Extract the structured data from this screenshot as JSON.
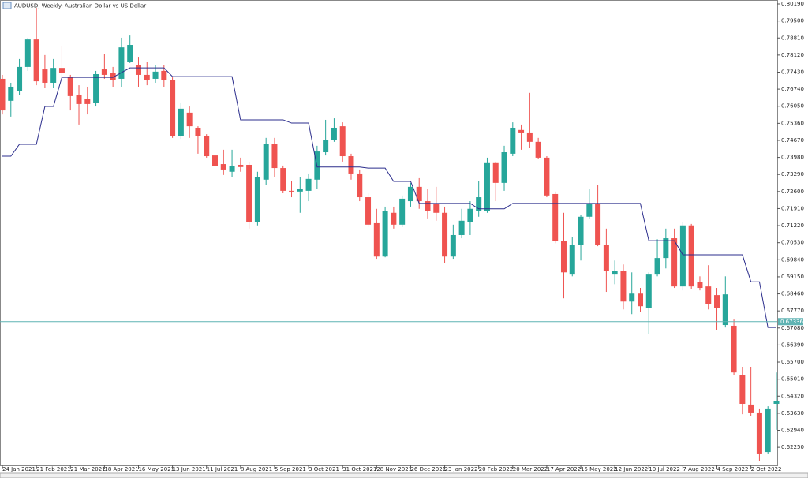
{
  "chart_data": {
    "type": "candlestick",
    "title": "AUDUSD, Weekly:  Australian Dollar vs US Dollar",
    "up_color": "#26a69a",
    "down_color": "#ef5350",
    "ylim": [
      0.6152,
      0.8035
    ],
    "yticks": [
      {
        "value": 0.8019,
        "label": "0.80190"
      },
      {
        "value": 0.795,
        "label": "0.79500"
      },
      {
        "value": 0.7881,
        "label": "0.78810"
      },
      {
        "value": 0.7812,
        "label": "0.78120"
      },
      {
        "value": 0.7743,
        "label": "0.77430"
      },
      {
        "value": 0.7674,
        "label": "0.76740"
      },
      {
        "value": 0.7605,
        "label": "0.76050"
      },
      {
        "value": 0.7536,
        "label": "0.75360"
      },
      {
        "value": 0.7467,
        "label": "0.74670"
      },
      {
        "value": 0.7398,
        "label": "0.73980"
      },
      {
        "value": 0.7329,
        "label": "0.73290"
      },
      {
        "value": 0.726,
        "label": "0.72600"
      },
      {
        "value": 0.7191,
        "label": "0.71910"
      },
      {
        "value": 0.7122,
        "label": "0.71220"
      },
      {
        "value": 0.7053,
        "label": "0.70530"
      },
      {
        "value": 0.6984,
        "label": "0.69840"
      },
      {
        "value": 0.6915,
        "label": "0.69150"
      },
      {
        "value": 0.6846,
        "label": "0.68460"
      },
      {
        "value": 0.6777,
        "label": "0.67770"
      },
      {
        "value": 0.6708,
        "label": "0.67080"
      },
      {
        "value": 0.6639,
        "label": "0.66390"
      },
      {
        "value": 0.657,
        "label": "0.65700"
      },
      {
        "value": 0.6501,
        "label": "0.65010"
      },
      {
        "value": 0.6432,
        "label": "0.64320"
      },
      {
        "value": 0.6363,
        "label": "0.63630"
      },
      {
        "value": 0.6294,
        "label": "0.62940"
      },
      {
        "value": 0.6225,
        "label": "0.62250"
      }
    ],
    "price_line": 0.67336,
    "price_line_color": "#5fb3b3",
    "categories": [
      "24 Jan 2021",
      null,
      null,
      null,
      "21 Feb 2021",
      null,
      null,
      null,
      "21 Mar 2021",
      null,
      null,
      null,
      "18 Apr 2021",
      null,
      null,
      null,
      "16 May 2021",
      null,
      null,
      null,
      "13 Jun 2021",
      null,
      null,
      null,
      "11 Jul 2021",
      null,
      null,
      null,
      "8 Aug 2021",
      null,
      null,
      null,
      "5 Sep 2021",
      null,
      null,
      null,
      "3 Oct 2021",
      null,
      null,
      null,
      "31 Oct 2021",
      null,
      null,
      null,
      "28 Nov 2021",
      null,
      null,
      null,
      "26 Dec 2021",
      null,
      null,
      null,
      "23 Jan 2022",
      null,
      null,
      null,
      "20 Feb 2022",
      null,
      null,
      null,
      "20 Mar 2022",
      null,
      null,
      null,
      "17 Apr 2022",
      null,
      null,
      null,
      "15 May 2022",
      null,
      null,
      null,
      "12 Jun 2022",
      null,
      null,
      null,
      "10 Jul 2022",
      null,
      null,
      null,
      "7 Aug 2022",
      null,
      null,
      null,
      "4 Sep 2022",
      null,
      null,
      null,
      "2 Oct 2022",
      null,
      null,
      null
    ],
    "open": [
      0.7716,
      0.7627,
      0.7668,
      0.7764,
      0.7875,
      0.7754,
      0.77,
      0.776,
      0.7725,
      0.7652,
      0.7636,
      0.762,
      0.7754,
      0.7741,
      0.7716,
      0.7786,
      0.7773,
      0.7732,
      0.7716,
      0.7748,
      0.771,
      0.7483,
      0.7579,
      0.7518,
      0.7486,
      0.7406,
      0.7371,
      0.734,
      0.7368,
      0.7368,
      0.7135,
      0.7308,
      0.7451,
      0.7355,
      0.7263,
      0.726,
      0.7263,
      0.7308,
      0.7419,
      0.747,
      0.7524,
      0.7403,
      0.7333,
      0.7237,
      0.7132,
      0.6997,
      0.7174,
      0.7126,
      0.7221,
      0.7279,
      0.7221,
      0.7212,
      0.7174,
      0.6997,
      0.7084,
      0.7135,
      0.718,
      0.718,
      0.7375,
      0.7295,
      0.7413,
      0.7509,
      0.7499,
      0.7461,
      0.7397,
      0.725,
      0.7061,
      0.6924,
      0.7045,
      0.7158,
      0.7212,
      0.7045,
      0.6924,
      0.694,
      0.6815,
      0.6847,
      0.679,
      0.6924,
      0.6991,
      0.7071,
      0.6876,
      0.7123,
      0.6895,
      0.6876,
      0.6841,
      0.672,
      0.6717,
      0.6516,
      0.6398,
      0.6366,
      0.6206,
      0.6401
    ],
    "high": [
      0.7732,
      0.77,
      0.7796,
      0.7882,
      0.8003,
      0.7812,
      0.7796,
      0.785,
      0.7732,
      0.769,
      0.7684,
      0.7748,
      0.7818,
      0.7764,
      0.7882,
      0.7891,
      0.7805,
      0.7786,
      0.7773,
      0.7773,
      0.7722,
      0.762,
      0.7604,
      0.7524,
      0.7492,
      0.7429,
      0.7429,
      0.7429,
      0.7397,
      0.7381,
      0.734,
      0.7477,
      0.7477,
      0.7365,
      0.7301,
      0.7317,
      0.7333,
      0.7445,
      0.755,
      0.7556,
      0.754,
      0.7413,
      0.7349,
      0.7253,
      0.719,
      0.7199,
      0.7199,
      0.7244,
      0.7295,
      0.7314,
      0.7269,
      0.7279,
      0.7199,
      0.7126,
      0.719,
      0.7221,
      0.7301,
      0.7397,
      0.7381,
      0.7445,
      0.754,
      0.7531,
      0.7659,
      0.7477,
      0.7403,
      0.726,
      0.7174,
      0.7077,
      0.7167,
      0.7269,
      0.7285,
      0.711,
      0.6981,
      0.6965,
      0.6933,
      0.687,
      0.6933,
      0.7067,
      0.711,
      0.711,
      0.7135,
      0.7129,
      0.6917,
      0.6962,
      0.687,
      0.6917,
      0.6742,
      0.6551,
      0.6551,
      0.6382,
      0.6391,
      0.6528
    ],
    "low": [
      0.7572,
      0.7563,
      0.7652,
      0.7748,
      0.769,
      0.7678,
      0.7678,
      0.7716,
      0.7588,
      0.7531,
      0.7572,
      0.7604,
      0.7716,
      0.7684,
      0.7684,
      0.778,
      0.7684,
      0.769,
      0.77,
      0.7684,
      0.7477,
      0.7473,
      0.7477,
      0.7413,
      0.7397,
      0.7292,
      0.7327,
      0.7317,
      0.734,
      0.711,
      0.7123,
      0.7285,
      0.7317,
      0.7253,
      0.7237,
      0.7174,
      0.7221,
      0.7269,
      0.7406,
      0.7461,
      0.7381,
      0.7308,
      0.7221,
      0.7116,
      0.6988,
      0.6994,
      0.711,
      0.7116,
      0.7199,
      0.719,
      0.7148,
      0.7142,
      0.6972,
      0.6988,
      0.7071,
      0.7084,
      0.7158,
      0.7174,
      0.7221,
      0.7263,
      0.7403,
      0.7429,
      0.7435,
      0.7391,
      0.7237,
      0.7051,
      0.6828,
      0.6917,
      0.6981,
      0.7148,
      0.7039,
      0.6854,
      0.6885,
      0.6783,
      0.6764,
      0.6774,
      0.6685,
      0.6917,
      0.6949,
      0.687,
      0.686,
      0.6866,
      0.686,
      0.6783,
      0.6701,
      0.671,
      0.6519,
      0.6359,
      0.635,
      0.6168,
      0.62,
      0.6296
    ],
    "close": [
      0.7588,
      0.7684,
      0.7764,
      0.7875,
      0.7706,
      0.77,
      0.776,
      0.7741,
      0.7646,
      0.7614,
      0.7614,
      0.7735,
      0.7732,
      0.771,
      0.7843,
      0.7853,
      0.7732,
      0.771,
      0.7745,
      0.771,
      0.7483,
      0.7595,
      0.7524,
      0.7486,
      0.7403,
      0.7362,
      0.7349,
      0.7362,
      0.7359,
      0.7135,
      0.7317,
      0.7454,
      0.7355,
      0.7263,
      0.726,
      0.7269,
      0.7311,
      0.7422,
      0.747,
      0.7518,
      0.7403,
      0.7333,
      0.7237,
      0.7126,
      0.6997,
      0.718,
      0.7126,
      0.7231,
      0.7279,
      0.7221,
      0.718,
      0.7174,
      0.6997,
      0.7084,
      0.7142,
      0.719,
      0.7237,
      0.7375,
      0.7295,
      0.7419,
      0.7518,
      0.7499,
      0.7461,
      0.7397,
      0.7244,
      0.7061,
      0.6933,
      0.7045,
      0.7158,
      0.7212,
      0.7045,
      0.694,
      0.694,
      0.6815,
      0.6847,
      0.6796,
      0.6924,
      0.6991,
      0.7071,
      0.6876,
      0.7123,
      0.6876,
      0.687,
      0.6806,
      0.679,
      0.6844,
      0.6528,
      0.6401,
      0.6366,
      0.62,
      0.6382,
      0.6413
    ],
    "line": {
      "color": "#2b2d8c",
      "values": [
        0.7403,
        0.7403,
        0.7451,
        0.7451,
        0.7451,
        0.7604,
        0.7604,
        0.7722,
        0.7722,
        0.7722,
        0.7722,
        0.7722,
        0.7722,
        0.7722,
        0.7741,
        0.776,
        0.776,
        0.776,
        0.776,
        0.776,
        0.7725,
        0.7725,
        0.7725,
        0.7725,
        0.7725,
        0.7725,
        0.7725,
        0.7725,
        0.755,
        0.755,
        0.755,
        0.755,
        0.755,
        0.755,
        0.7537,
        0.7537,
        0.7537,
        0.7359,
        0.7359,
        0.7359,
        0.7359,
        0.7359,
        0.7359,
        0.7355,
        0.7355,
        0.7355,
        0.7301,
        0.7301,
        0.7301,
        0.7212,
        0.7212,
        0.7212,
        0.7212,
        0.7212,
        0.7212,
        0.7212,
        0.719,
        0.719,
        0.719,
        0.719,
        0.7212,
        0.7212,
        0.7212,
        0.7212,
        0.7212,
        0.7212,
        0.7212,
        0.7212,
        0.7212,
        0.7212,
        0.7212,
        0.7212,
        0.7212,
        0.7212,
        0.7212,
        0.7212,
        0.7061,
        0.7061,
        0.7061,
        0.7061,
        0.7004,
        0.7004,
        0.7004,
        0.7004,
        0.7004,
        0.7004,
        0.7004,
        0.7004,
        0.6895,
        0.6895,
        0.671,
        0.671
      ]
    }
  }
}
